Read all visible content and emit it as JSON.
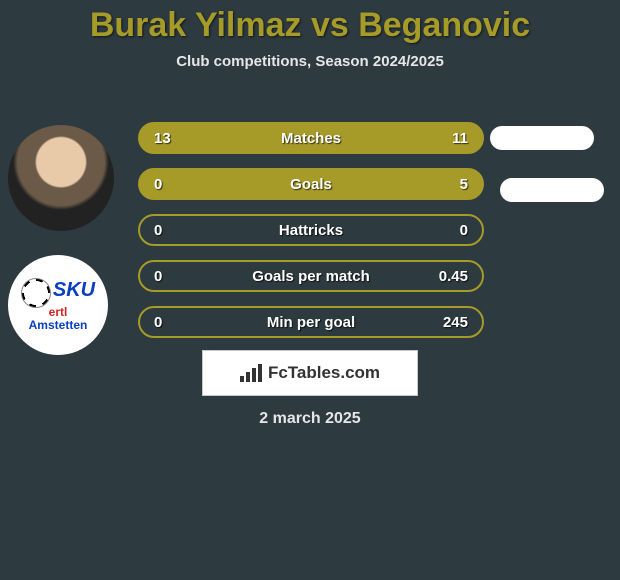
{
  "title": {
    "text": "Burak Yilmaz vs Beganovic",
    "color": "#a69a29"
  },
  "subtitle": "Club competitions, Season 2024/2025",
  "background_color": "#2d3a3f",
  "row_style": {
    "height": 32,
    "radius": 16,
    "spacing": 14,
    "label_fontsize": 15,
    "text_color": "#ffffff"
  },
  "rows": [
    {
      "label": "Matches",
      "left": "13",
      "right": "11",
      "fill": "#a69a29",
      "border": "#a69a29"
    },
    {
      "label": "Goals",
      "left": "0",
      "right": "5",
      "fill": "#a69a29",
      "border": "#a69a29"
    },
    {
      "label": "Hattricks",
      "left": "0",
      "right": "0",
      "fill": "transparent",
      "border": "#a69a29"
    },
    {
      "label": "Goals per match",
      "left": "0",
      "right": "0.45",
      "fill": "transparent",
      "border": "#a69a29"
    },
    {
      "label": "Min per goal",
      "left": "0",
      "right": "245",
      "fill": "transparent",
      "border": "#a69a29"
    }
  ],
  "blobs": {
    "color": "#ffffff"
  },
  "brand": {
    "text": "FcTables.com"
  },
  "date": "2 march 2025",
  "club_logo_text": {
    "line1": "SKU",
    "line2": "ertl",
    "line3": "Amstetten"
  }
}
